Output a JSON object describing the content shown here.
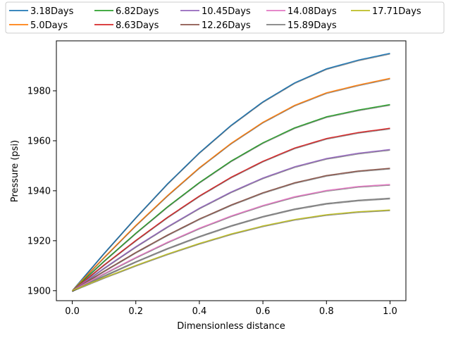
{
  "chart_data": {
    "type": "line",
    "xlabel": "Dimensionless distance",
    "ylabel": "Pressure (psi)",
    "xlim": [
      -0.05,
      1.05
    ],
    "ylim": [
      1896,
      2000
    ],
    "xticks": [
      "0.0",
      "0.2",
      "0.4",
      "0.6",
      "0.8",
      "1.0"
    ],
    "yticks": [
      "1900",
      "1920",
      "1940",
      "1960",
      "1980"
    ],
    "legend_position": "top, above plot, 5 columns",
    "x": [
      0.0,
      0.1,
      0.2,
      0.3,
      0.4,
      0.5,
      0.6,
      0.7,
      0.8,
      0.9,
      1.0
    ],
    "series": [
      {
        "name": "3.18Days",
        "color": "#1f77b4",
        "values": [
          1900,
          1914.9,
          1929.2,
          1942.8,
          1955.2,
          1966.2,
          1975.6,
          1983.2,
          1988.8,
          1992.3,
          1995
        ]
      },
      {
        "name": "5.0Days",
        "color": "#ff7f0e",
        "values": [
          1900,
          1913.3,
          1926.1,
          1938.1,
          1949.2,
          1959.0,
          1967.4,
          1974.2,
          1979.2,
          1982.3,
          1985
        ]
      },
      {
        "name": "6.82Days",
        "color": "#2ca02c",
        "values": [
          1900,
          1911.8,
          1923.0,
          1933.6,
          1943.3,
          1951.9,
          1959.2,
          1965.2,
          1969.6,
          1972.3,
          1974.5
        ]
      },
      {
        "name": "8.63Days",
        "color": "#d62728",
        "values": [
          1900,
          1910.3,
          1920.1,
          1929.4,
          1937.9,
          1945.4,
          1951.8,
          1957.1,
          1960.9,
          1963.3,
          1965
        ]
      },
      {
        "name": "10.45Days",
        "color": "#9467bd",
        "values": [
          1900,
          1909.0,
          1917.6,
          1925.6,
          1933.0,
          1939.5,
          1945.1,
          1949.6,
          1952.9,
          1955.0,
          1956.5
        ]
      },
      {
        "name": "12.26Days",
        "color": "#8c564b",
        "values": [
          1900,
          1907.8,
          1915.3,
          1922.3,
          1928.7,
          1934.3,
          1939.2,
          1943.2,
          1946.1,
          1947.9,
          1949
        ]
      },
      {
        "name": "14.08Days",
        "color": "#e377c2",
        "values": [
          1900,
          1906.8,
          1913.3,
          1919.4,
          1925.0,
          1929.9,
          1934.1,
          1937.6,
          1940.1,
          1941.7,
          1942.5
        ]
      },
      {
        "name": "15.89Days",
        "color": "#7f7f7f",
        "values": [
          1900,
          1905.9,
          1911.6,
          1916.9,
          1921.7,
          1926.0,
          1929.7,
          1932.7,
          1934.9,
          1936.2,
          1937
        ]
      },
      {
        "name": "17.71Days",
        "color": "#bcbd22",
        "values": [
          1900,
          1905.2,
          1910.1,
          1914.7,
          1918.9,
          1922.7,
          1925.9,
          1928.5,
          1930.4,
          1931.6,
          1932.3
        ]
      }
    ],
    "overlay_dark_color": "#2b2b2b"
  }
}
